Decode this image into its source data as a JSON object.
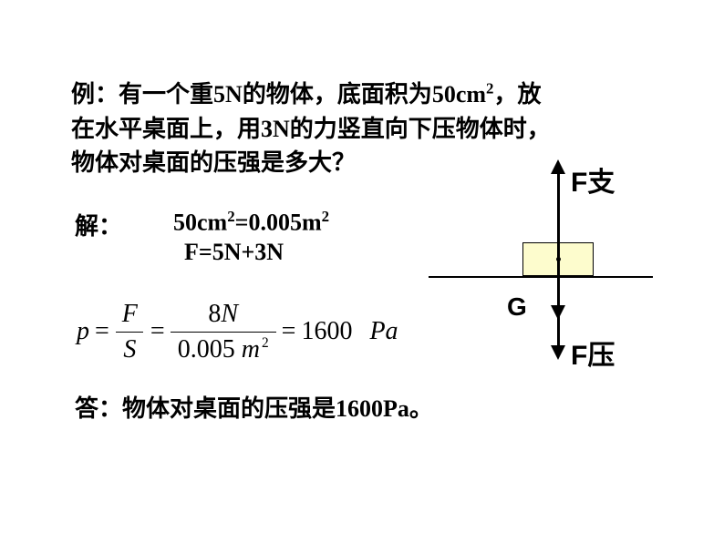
{
  "problem": {
    "prefix": "例：",
    "line1a": "有一个重",
    "w": "5N",
    "line1b": "的物体，底面积为",
    "area": "50cm",
    "line1c": "，放",
    "line2a": "在水平桌面上，用",
    "f": "3N",
    "line2b": "的力竖直向下压物体时，",
    "line3": "物体对桌面的压强是多大？"
  },
  "solution": {
    "label": "解：",
    "conversion_a": "50cm",
    "conversion_b": "=0.005m",
    "force": "F=5N+3N"
  },
  "formula": {
    "p": "p",
    "eq1": "=",
    "F": "F",
    "S": "S",
    "eq2": "=",
    "num": "8",
    "num_unit": "N",
    "den": "0.005",
    "den_unit": "m",
    "eq3": "=",
    "result": "1600",
    "unit": "Pa"
  },
  "answer": {
    "prefix": "答：",
    "text": "物体对桌面的压强是",
    "value": "1600Pa",
    "end": "。"
  },
  "diagram": {
    "f_support": "F支",
    "g": "G",
    "f_press": "F压",
    "block_color": "#fdfccd",
    "line_color": "#000000"
  }
}
